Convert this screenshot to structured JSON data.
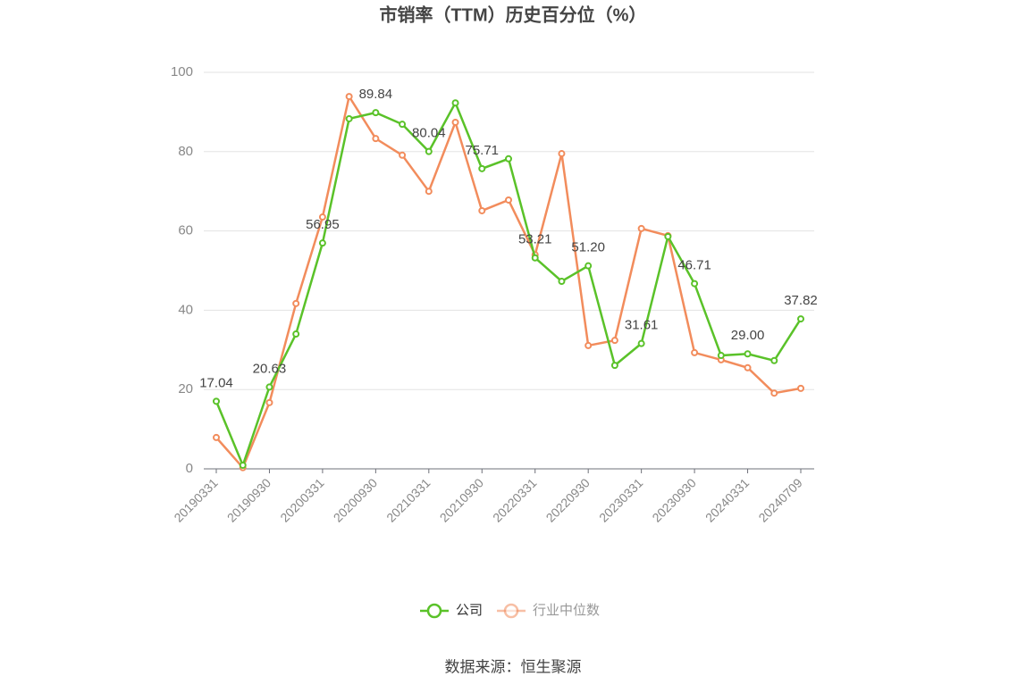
{
  "chart_data": {
    "type": "line",
    "title": "市销率（TTM）历史百分位（%）",
    "source": "数据来源：恒生聚源",
    "categories": [
      "20190331",
      null,
      "20190930",
      null,
      "20200331",
      null,
      "20200930",
      null,
      "20210331",
      null,
      "20210930",
      null,
      "20220331",
      null,
      "20220930",
      null,
      "20230331",
      null,
      "20230930",
      null,
      "20240331",
      null,
      "20240709"
    ],
    "series": [
      {
        "name": "公司",
        "color": "#5ac229",
        "values": [
          17.04,
          0.9,
          20.63,
          34.0,
          56.95,
          88.3,
          89.84,
          86.9,
          80.04,
          92.3,
          75.71,
          78.2,
          53.21,
          47.3,
          51.2,
          26.1,
          31.61,
          58.6,
          46.71,
          28.6,
          29.0,
          27.3,
          37.82
        ],
        "value_labels": [
          "17.04",
          null,
          "20.63",
          null,
          "56.95",
          null,
          "89.84",
          null,
          "80.04",
          null,
          "75.71",
          null,
          "53.21",
          null,
          "51.20",
          null,
          "31.61",
          null,
          "46.71",
          null,
          "29.00",
          null,
          "37.82"
        ]
      },
      {
        "name": "行业中位数",
        "color": "#f28c5c",
        "values": [
          7.9,
          0.3,
          16.7,
          41.7,
          63.5,
          93.9,
          83.3,
          79.1,
          70.0,
          87.4,
          65.1,
          67.8,
          54.0,
          79.5,
          31.1,
          32.4,
          60.6,
          58.8,
          29.3,
          27.5,
          25.5,
          19.1,
          20.3
        ]
      }
    ],
    "ylim": [
      0,
      100
    ],
    "yticks": [
      0,
      20,
      40,
      60,
      80,
      100
    ],
    "grid": true,
    "legend": "bottom"
  }
}
